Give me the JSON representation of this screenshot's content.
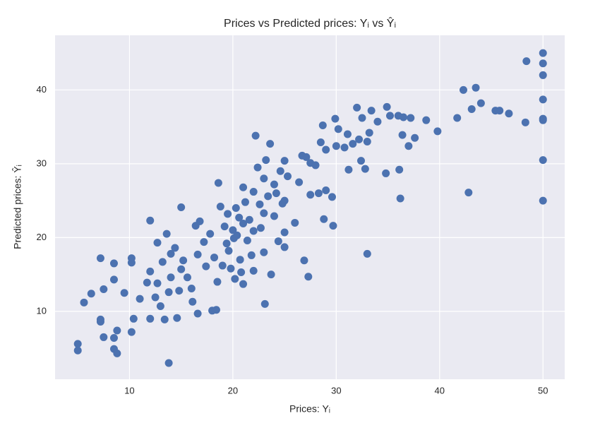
{
  "chart_data": {
    "type": "scatter",
    "title": "Prices vs Predicted prices: Yᵢ vs Ŷᵢ",
    "xlabel": "Prices: Yᵢ",
    "ylabel": "Predicted prices: Ŷᵢ",
    "color": "#4c72b0",
    "grid": true,
    "xlim": [
      2.8,
      52.1
    ],
    "ylim": [
      0.8,
      47.4
    ],
    "xticks": [
      10,
      20,
      30,
      40,
      50
    ],
    "yticks": [
      10,
      20,
      30,
      40
    ],
    "x": [
      5,
      5,
      5.6,
      6.3,
      7.2,
      7.2,
      7.2,
      7.5,
      7.5,
      8.5,
      8.5,
      8.5,
      8.5,
      8.8,
      8.8,
      9.5,
      10.2,
      10.2,
      10.2,
      10.4,
      11,
      11.7,
      12,
      12,
      12,
      12.5,
      12.7,
      12.7,
      13,
      13.2,
      13.4,
      13.6,
      13.8,
      13.8,
      14,
      14,
      14.4,
      14.6,
      14.8,
      15,
      15,
      15.2,
      15.6,
      16,
      16.1,
      16.4,
      16.6,
      16.6,
      16.8,
      17.2,
      17.4,
      17.8,
      18,
      18.2,
      18.4,
      18.5,
      18.6,
      18.8,
      19,
      19.2,
      19.4,
      19.5,
      19.6,
      19.8,
      20,
      20.1,
      20.2,
      20.3,
      20.4,
      20.6,
      20.7,
      20.8,
      21,
      21,
      21,
      21.2,
      21.4,
      21.6,
      21.8,
      22,
      22,
      22,
      22.2,
      22.4,
      22.6,
      22.7,
      23,
      23,
      23,
      23.1,
      23.2,
      23.4,
      23.6,
      23.7,
      24,
      24,
      24.2,
      24.4,
      24.6,
      24.8,
      25,
      25,
      25,
      25,
      25.3,
      26,
      26.4,
      26.7,
      26.9,
      27.1,
      27.3,
      27.5,
      27.5,
      28,
      28.3,
      28.5,
      28.7,
      28.8,
      29,
      29,
      29.6,
      29.7,
      29.9,
      30,
      30.2,
      30.8,
      31.1,
      31.2,
      31.6,
      32,
      32.2,
      32.4,
      32.5,
      32.8,
      33,
      33,
      33.2,
      33.4,
      34,
      34.8,
      34.9,
      35.2,
      36,
      36.1,
      36.2,
      36.4,
      36.5,
      37,
      37.2,
      37.6,
      38.7,
      39.8,
      41.7,
      42.3,
      42.8,
      43.1,
      43.5,
      44,
      45.4,
      45.8,
      46.7,
      48.3,
      48.4,
      50,
      50,
      50,
      50,
      50,
      50,
      50,
      50
    ],
    "values": [
      5.6,
      4.7,
      11.2,
      12.4,
      17.2,
      8.9,
      8.6,
      6.5,
      13,
      4.9,
      16.5,
      14.3,
      6.4,
      4.3,
      7.4,
      12.5,
      17.2,
      16.6,
      7.2,
      9,
      11.7,
      13.9,
      22.3,
      15.4,
      9,
      11.9,
      19.3,
      13.8,
      10.7,
      16.7,
      8.9,
      20.5,
      12.6,
      3,
      17.8,
      14.6,
      18.6,
      9.1,
      12.8,
      24.1,
      15.7,
      16.9,
      14.6,
      13.1,
      11.3,
      21.6,
      17.7,
      9.7,
      22.2,
      19.4,
      16.1,
      20.5,
      10.1,
      17.3,
      10.2,
      14,
      27.4,
      24.2,
      16.2,
      21.5,
      19.2,
      23.2,
      18.2,
      15.8,
      21,
      19.9,
      14.4,
      24,
      20.3,
      22.7,
      17,
      15.3,
      21.9,
      26.8,
      13.7,
      24.8,
      19.6,
      22.4,
      17.6,
      26.2,
      20.9,
      15.5,
      33.8,
      29.5,
      24.5,
      21.3,
      28,
      23.3,
      18,
      11,
      30.5,
      25.6,
      32.7,
      15,
      27.2,
      22.9,
      26,
      19.5,
      29,
      24.6,
      30.4,
      20.7,
      18.7,
      25,
      28.3,
      22,
      27.5,
      31.1,
      16.9,
      30.9,
      14.7,
      25.8,
      30.1,
      29.8,
      26,
      32.9,
      35.2,
      22.5,
      31.9,
      26.4,
      25.5,
      21.6,
      36.1,
      32.4,
      34.7,
      32.2,
      34,
      29.2,
      32.7,
      37.6,
      33.3,
      30.4,
      36.2,
      29.3,
      17.8,
      33,
      34.2,
      37.2,
      35.7,
      28.7,
      37.7,
      36.5,
      36.5,
      29.2,
      25.3,
      33.9,
      36.3,
      32.4,
      36.2,
      33.5,
      35.9,
      34.4,
      36.2,
      40,
      26.1,
      37.4,
      40.3,
      38.2,
      37.2,
      37.2,
      36.8,
      35.6,
      43.9,
      45,
      43.6,
      42,
      38.7,
      36.1,
      35.9,
      30.5,
      25
    ]
  }
}
